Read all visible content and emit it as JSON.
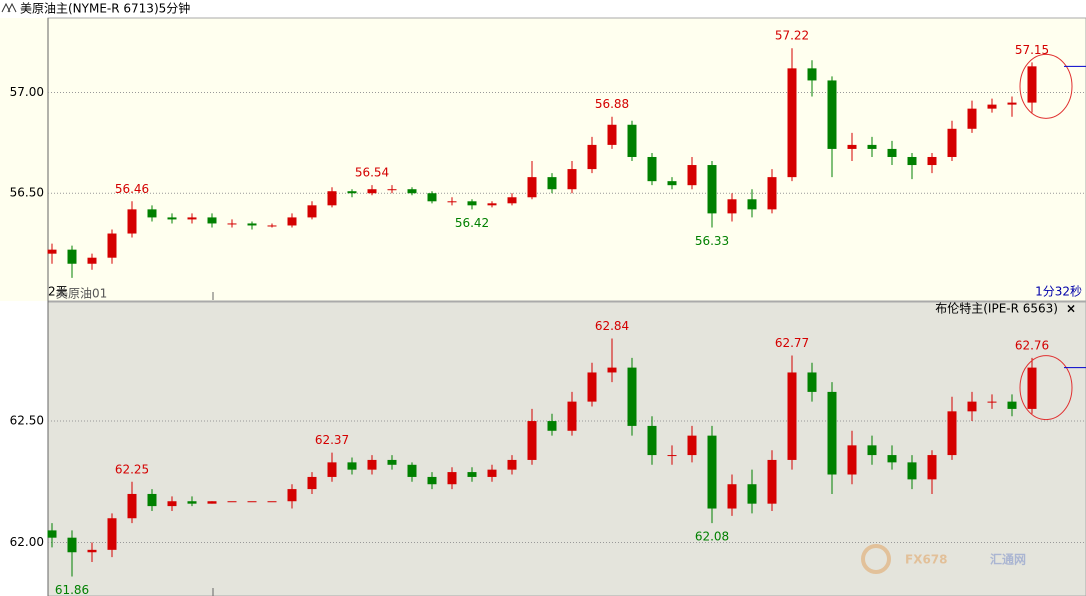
{
  "chart_data": [
    {
      "type": "candlestick",
      "title": "美原油主(NYME-R 6713)5分钟",
      "period_label": "2天",
      "instrument_label": "美原油01",
      "countdown": "1分32秒",
      "up_color": "#d40000",
      "down_color": "#008000",
      "ylim": [
        55.97,
        57.37
      ],
      "yticks": [
        {
          "value": 56.5,
          "label": "56.50"
        },
        {
          "value": 57,
          "label": "57.00"
        }
      ],
      "grid": true,
      "open": [
        56.2,
        56.22,
        56.15,
        56.18,
        56.3,
        56.42,
        56.38,
        56.37,
        56.38,
        56.35,
        56.35,
        56.34,
        56.34,
        56.38,
        56.44,
        56.51,
        56.5,
        56.52,
        56.52,
        56.5,
        56.46,
        56.46,
        56.44,
        56.45,
        56.48,
        56.58,
        56.52,
        56.62,
        56.74,
        56.84,
        56.68,
        56.56,
        56.54,
        56.64,
        56.4,
        56.47,
        56.42,
        56.58,
        57.12,
        57.06,
        56.72,
        56.74,
        56.72,
        56.68,
        56.64,
        56.68,
        56.82,
        56.92,
        56.94,
        56.95
      ],
      "high": [
        56.25,
        56.24,
        56.2,
        56.32,
        56.46,
        56.44,
        56.4,
        56.4,
        56.4,
        56.37,
        56.36,
        56.35,
        56.4,
        56.46,
        56.53,
        56.52,
        56.54,
        56.54,
        56.53,
        56.51,
        56.48,
        56.47,
        56.46,
        56.5,
        56.66,
        56.6,
        56.66,
        56.78,
        56.88,
        56.86,
        56.7,
        56.58,
        56.68,
        56.66,
        56.5,
        56.52,
        56.62,
        57.22,
        57.16,
        57.08,
        56.8,
        56.78,
        56.76,
        56.7,
        56.7,
        56.86,
        56.96,
        56.97,
        56.98,
        57.15
      ],
      "low": [
        56.15,
        56.08,
        56.12,
        56.15,
        56.28,
        56.36,
        56.35,
        56.35,
        56.33,
        56.33,
        56.32,
        56.33,
        56.33,
        56.37,
        56.43,
        56.48,
        56.49,
        56.5,
        56.49,
        56.45,
        56.44,
        56.42,
        56.43,
        56.44,
        56.47,
        56.5,
        56.5,
        56.6,
        56.72,
        56.66,
        56.54,
        56.52,
        56.52,
        56.33,
        56.36,
        56.38,
        56.4,
        56.56,
        56.98,
        56.58,
        56.66,
        56.68,
        56.64,
        56.57,
        56.6,
        56.66,
        56.8,
        56.9,
        56.88,
        56.9
      ],
      "close": [
        56.22,
        56.15,
        56.18,
        56.3,
        56.42,
        56.38,
        56.37,
        56.38,
        56.35,
        56.35,
        56.34,
        56.34,
        56.38,
        56.44,
        56.51,
        56.5,
        56.52,
        56.52,
        56.5,
        56.46,
        56.46,
        56.44,
        56.45,
        56.48,
        56.58,
        56.52,
        56.62,
        56.74,
        56.84,
        56.68,
        56.56,
        56.54,
        56.64,
        56.4,
        56.47,
        56.42,
        56.58,
        57.12,
        57.06,
        56.72,
        56.74,
        56.72,
        56.68,
        56.64,
        56.68,
        56.82,
        56.92,
        56.94,
        56.95,
        57.13
      ]
    },
    {
      "type": "candlestick",
      "title": "布伦特主(IPE-R 6563)",
      "up_color": "#d40000",
      "down_color": "#008000",
      "ylim": [
        61.78,
        62.99
      ],
      "yticks": [
        {
          "value": 62,
          "label": "62.00"
        },
        {
          "value": 62.5,
          "label": "62.50"
        }
      ],
      "grid": true,
      "open": [
        62.05,
        62.02,
        61.96,
        61.97,
        62.1,
        62.2,
        62.15,
        62.17,
        62.16,
        62.17,
        62.17,
        62.17,
        62.17,
        62.22,
        62.27,
        62.33,
        62.3,
        62.34,
        62.32,
        62.27,
        62.24,
        62.29,
        62.27,
        62.3,
        62.34,
        62.5,
        62.46,
        62.58,
        62.7,
        62.72,
        62.48,
        62.36,
        62.36,
        62.44,
        62.14,
        62.24,
        62.16,
        62.34,
        62.7,
        62.62,
        62.28,
        62.4,
        62.36,
        62.33,
        62.26,
        62.36,
        62.54,
        62.58,
        62.58,
        62.55
      ],
      "high": [
        62.08,
        62.05,
        62.0,
        62.12,
        62.25,
        62.22,
        62.19,
        62.19,
        62.17,
        62.17,
        62.17,
        62.17,
        62.24,
        62.29,
        62.37,
        62.35,
        62.36,
        62.36,
        62.33,
        62.29,
        62.31,
        62.31,
        62.32,
        62.36,
        62.55,
        62.53,
        62.62,
        62.74,
        62.84,
        62.76,
        62.52,
        62.4,
        62.48,
        62.48,
        62.28,
        62.3,
        62.38,
        62.77,
        62.74,
        62.66,
        62.46,
        62.44,
        62.4,
        62.36,
        62.38,
        62.6,
        62.62,
        62.61,
        62.61,
        62.76
      ],
      "low": [
        61.98,
        61.86,
        61.92,
        61.94,
        62.08,
        62.13,
        62.13,
        62.15,
        62.16,
        62.17,
        62.17,
        62.17,
        62.14,
        62.2,
        62.25,
        62.28,
        62.28,
        62.3,
        62.25,
        62.22,
        62.22,
        62.25,
        62.25,
        62.28,
        62.32,
        62.44,
        62.44,
        62.56,
        62.66,
        62.44,
        62.32,
        62.32,
        62.33,
        62.08,
        62.11,
        62.12,
        62.13,
        62.3,
        62.58,
        62.2,
        62.24,
        62.32,
        62.3,
        62.22,
        62.2,
        62.34,
        62.5,
        62.55,
        62.52,
        62.53
      ],
      "close": [
        62.02,
        61.96,
        61.97,
        62.1,
        62.2,
        62.15,
        62.17,
        62.16,
        62.17,
        62.17,
        62.17,
        62.17,
        62.22,
        62.27,
        62.33,
        62.3,
        62.34,
        62.32,
        62.27,
        62.24,
        62.29,
        62.27,
        62.3,
        62.34,
        62.5,
        62.46,
        62.58,
        62.7,
        62.72,
        62.48,
        62.36,
        62.36,
        62.44,
        62.14,
        62.24,
        62.16,
        62.34,
        62.7,
        62.62,
        62.28,
        62.4,
        62.36,
        62.33,
        62.26,
        62.36,
        62.54,
        62.58,
        62.58,
        62.55,
        62.72
      ]
    }
  ],
  "watermark": {
    "brand": "FX678",
    "name": "汇通网"
  }
}
